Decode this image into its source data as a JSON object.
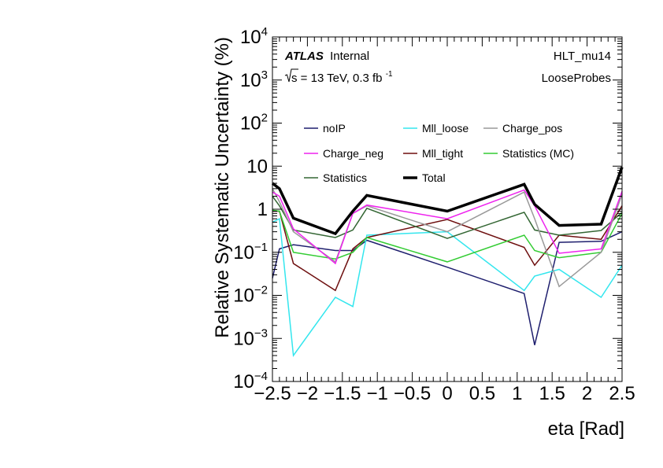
{
  "chart_data": {
    "type": "line",
    "xlabel": "eta [Rad]",
    "ylabel": "Relative Systematic Uncertainty (%)",
    "xlim": [
      -2.5,
      2.5
    ],
    "ylim": [
      0.0001,
      10000
    ],
    "yscale": "log",
    "grid": false,
    "legend_position": "center",
    "x_ticks": [
      "-2.5",
      "-2",
      "-1.5",
      "-1",
      "-0.5",
      "0",
      "0.5",
      "1",
      "1.5",
      "2",
      "2.5"
    ],
    "y_ticks": [
      {
        "base": "10",
        "exp": "-4"
      },
      {
        "base": "10",
        "exp": "-3"
      },
      {
        "base": "10",
        "exp": "-2"
      },
      {
        "base": "10",
        "exp": "-1"
      },
      {
        "base": "1",
        "exp": ""
      },
      {
        "base": "10",
        "exp": ""
      },
      {
        "base": "10",
        "exp": "2"
      },
      {
        "base": "10",
        "exp": "3"
      },
      {
        "base": "10",
        "exp": "4"
      }
    ],
    "annotations": {
      "atlas": "ATLAS",
      "internal": "Internal",
      "energy_prefix": "s",
      "energy_text": " = 13 TeV, 0.3 fb",
      "energy_exp": "-1",
      "trigger": "HLT_mu14",
      "probes": "LooseProbes"
    },
    "x": [
      -2.5,
      -2.4,
      -2.2,
      -1.6,
      -1.35,
      -1.15,
      0.0,
      1.1,
      1.25,
      1.6,
      2.2,
      2.5
    ],
    "series": [
      {
        "name": "noIP",
        "color": "#1f1f6e",
        "width": 1.5,
        "values": [
          0.025,
          0.12,
          0.15,
          0.11,
          0.11,
          0.19,
          0.045,
          0.011,
          0.0007,
          0.17,
          0.18,
          0.3
        ]
      },
      {
        "name": "Mll_loose",
        "color": "#33e6ee",
        "width": 1.5,
        "values": [
          0.5,
          0.6,
          0.0004,
          0.009,
          0.0055,
          0.25,
          0.3,
          0.013,
          0.028,
          0.04,
          0.009,
          0.05
        ]
      },
      {
        "name": "Charge_pos",
        "color": "#999999",
        "width": 1.5,
        "values": [
          3.0,
          1.5,
          0.3,
          0.06,
          0.8,
          1.2,
          0.3,
          2.5,
          0.6,
          0.016,
          0.1,
          2.2
        ]
      },
      {
        "name": "Charge_neg",
        "color": "#ee22ee",
        "width": 1.5,
        "values": [
          2.5,
          2.0,
          0.35,
          0.055,
          0.8,
          1.25,
          0.6,
          2.8,
          1.2,
          0.095,
          0.12,
          2.6
        ]
      },
      {
        "name": "Mll_tight",
        "color": "#6e0f0f",
        "width": 1.5,
        "values": [
          0.9,
          0.9,
          0.055,
          0.013,
          0.12,
          0.22,
          0.58,
          0.13,
          0.05,
          0.25,
          0.2,
          1.2
        ]
      },
      {
        "name": "Statistics (MC)",
        "color": "#33cc33",
        "width": 1.5,
        "values": [
          0.95,
          0.9,
          0.1,
          0.07,
          0.1,
          0.22,
          0.06,
          0.25,
          0.11,
          0.075,
          0.1,
          0.8
        ]
      },
      {
        "name": "Statistics",
        "color": "#336633",
        "width": 1.5,
        "values": [
          2.0,
          1.2,
          0.33,
          0.22,
          0.33,
          1.05,
          0.21,
          0.85,
          0.33,
          0.25,
          0.32,
          0.85
        ]
      },
      {
        "name": "Total",
        "color": "#000000",
        "width": 3.5,
        "values": [
          4.0,
          3.0,
          0.62,
          0.27,
          0.9,
          2.1,
          0.9,
          3.8,
          1.3,
          0.42,
          0.45,
          9.5
        ]
      }
    ]
  }
}
